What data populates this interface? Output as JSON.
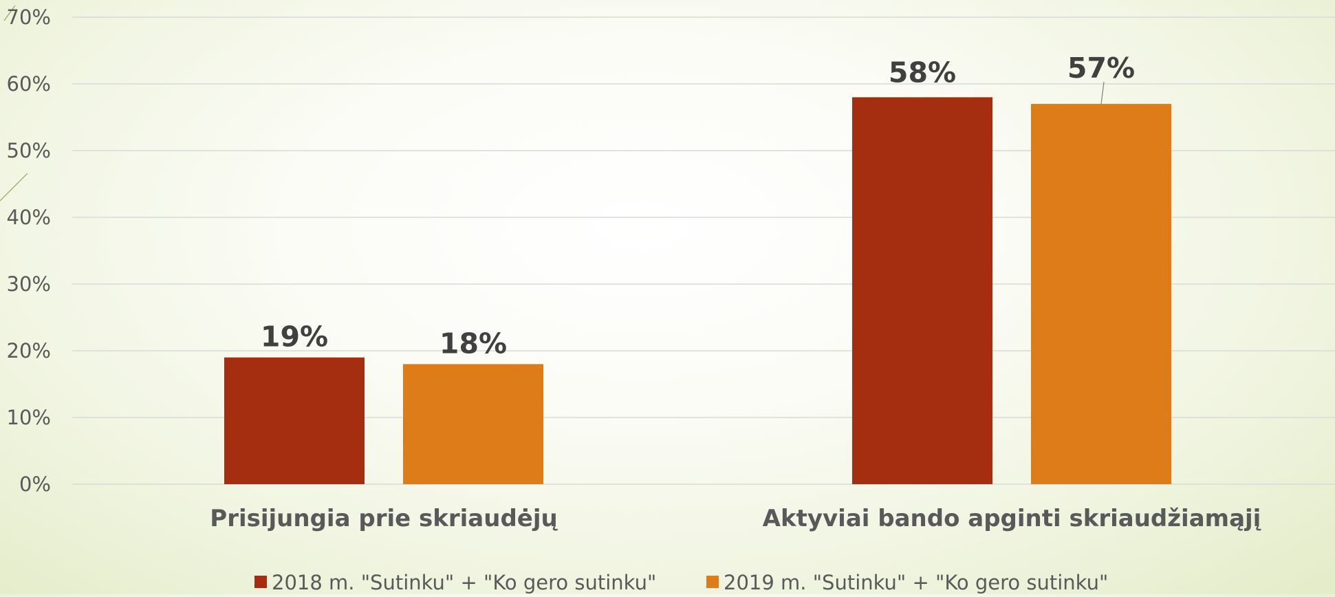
{
  "chart_data": {
    "type": "bar",
    "title": "",
    "xlabel": "",
    "ylabel": "",
    "ylim": [
      0,
      0.7
    ],
    "y_ticks": [
      "0%",
      "10%",
      "20%",
      "30%",
      "40%",
      "50%",
      "60%",
      "70%"
    ],
    "grid": true,
    "legend_position": "bottom",
    "categories": [
      "Prisijungia prie skriaudėjų",
      "Aktyviai bando apginti skriaudžiamąjį"
    ],
    "series": [
      {
        "name": "2018 m. \"Sutinku\" + \"Ko gero sutinku\"",
        "color": "#A52E10",
        "values": [
          0.19,
          0.58
        ],
        "labels": [
          "19%",
          "58%"
        ]
      },
      {
        "name": "2019 m. \"Sutinku\" + \"Ko gero sutinku\"",
        "color": "#DE7C19",
        "values": [
          0.18,
          0.57
        ],
        "labels": [
          "18%",
          "57%"
        ]
      }
    ]
  }
}
